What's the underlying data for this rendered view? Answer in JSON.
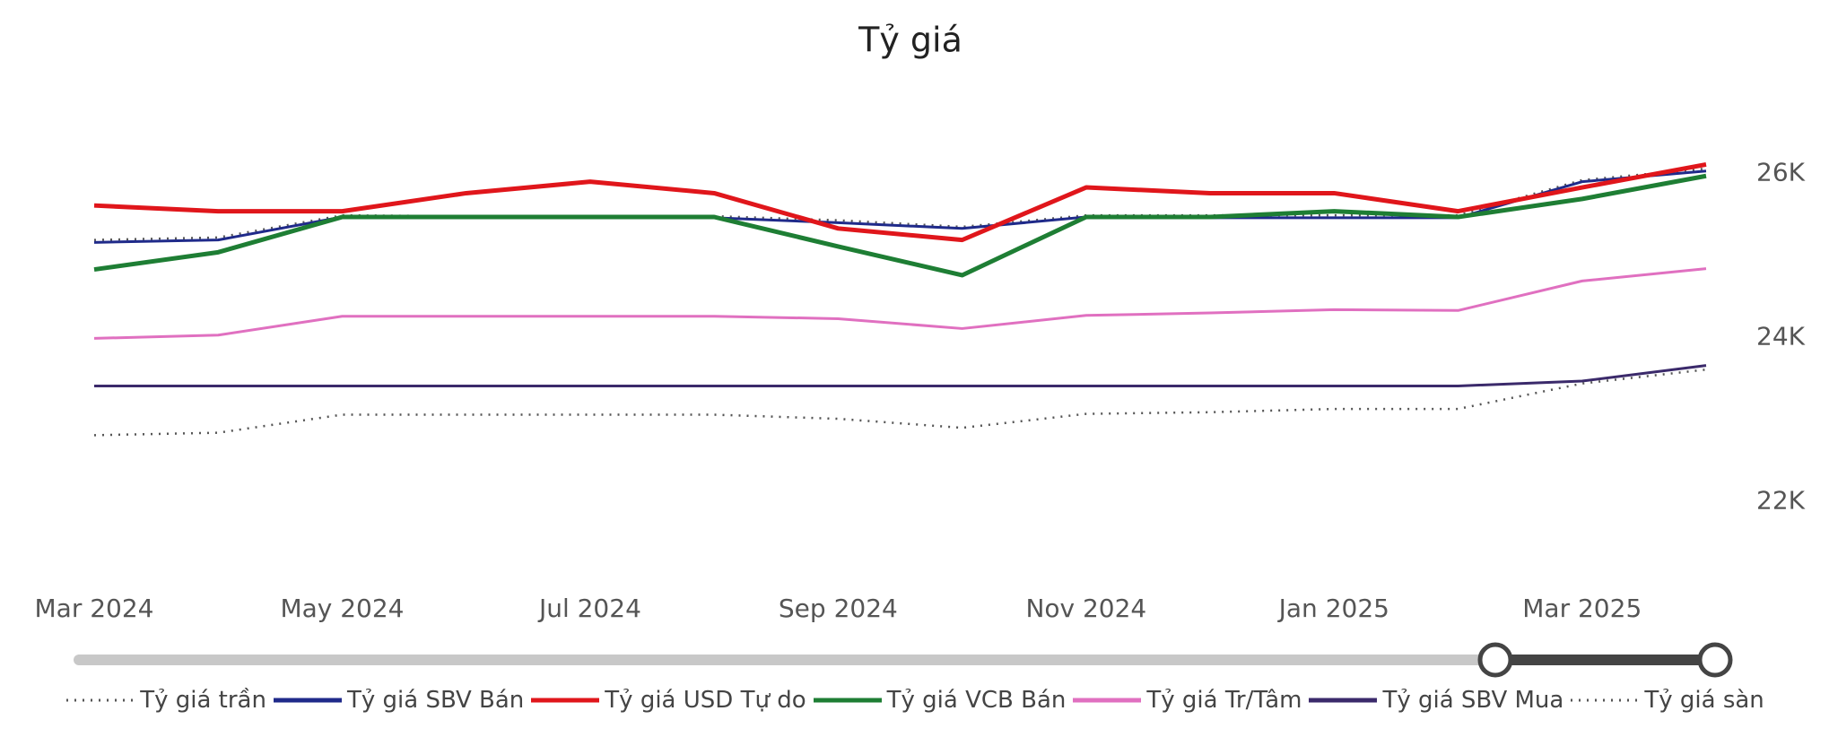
{
  "chart_data": {
    "type": "line",
    "title": "Tỷ giá",
    "legend": "bottom",
    "x": [
      "2024-03",
      "2024-04",
      "2024-05",
      "2024-06",
      "2024-07",
      "2024-08",
      "2024-09",
      "2024-10",
      "2024-11",
      "2024-12",
      "2025-01",
      "2025-02",
      "2025-03",
      "2025-04"
    ],
    "xlim": [
      "2024-03",
      "2025-04"
    ],
    "xticks": [
      {
        "value": "2024-03",
        "label": "Mar 2024"
      },
      {
        "value": "2024-05",
        "label": "May 2024"
      },
      {
        "value": "2024-07",
        "label": "Jul 2024"
      },
      {
        "value": "2024-09",
        "label": "Sep 2024"
      },
      {
        "value": "2024-11",
        "label": "Nov 2024"
      },
      {
        "value": "2025-01",
        "label": "Jan 2025"
      },
      {
        "value": "2025-03",
        "label": "Mar 2025"
      }
    ],
    "ylim": [
      21000,
      27000
    ],
    "yticks": [
      {
        "value": 22000,
        "label": "22K"
      },
      {
        "value": 24000,
        "label": "24K"
      },
      {
        "value": 26000,
        "label": "26K"
      }
    ],
    "series": [
      {
        "name": "Tỷ giá trần",
        "color": "#555555",
        "style": "dotted",
        "values": [
          25190,
          25220,
          25490,
          25480,
          25480,
          25480,
          25430,
          25350,
          25490,
          25490,
          25490,
          25490,
          25920,
          26060
        ]
      },
      {
        "name": "Tỷ giá SBV Bán",
        "color": "#1f2a8a",
        "style": "solid",
        "values": [
          25160,
          25190,
          25470,
          25460,
          25460,
          25460,
          25400,
          25330,
          25470,
          25460,
          25460,
          25460,
          25900,
          26030
        ]
      },
      {
        "name": "Tỷ giá USD Tự do",
        "color": "#e0161b",
        "style": "solid",
        "values": [
          25610,
          25540,
          25540,
          25760,
          25900,
          25760,
          25330,
          25190,
          25830,
          25760,
          25760,
          25540,
          25830,
          26110
        ]
      },
      {
        "name": "Tỷ giá VCB Bán",
        "color": "#1e7e34",
        "style": "solid",
        "values": [
          24830,
          25040,
          25470,
          25470,
          25470,
          25470,
          25110,
          24760,
          25470,
          25470,
          25540,
          25470,
          25690,
          25970
        ]
      },
      {
        "name": "Tỷ giá Tr/Tâm",
        "color": "#e070c0",
        "style": "solid",
        "values": [
          23990,
          24030,
          24260,
          24260,
          24260,
          24260,
          24230,
          24110,
          24270,
          24300,
          24340,
          24330,
          24690,
          24840
        ]
      },
      {
        "name": "Tỷ giá SBV Mua",
        "color": "#3b2a6b",
        "style": "solid",
        "values": [
          23410,
          23410,
          23410,
          23410,
          23410,
          23410,
          23410,
          23410,
          23410,
          23410,
          23410,
          23410,
          23470,
          23660
        ]
      },
      {
        "name": "Tỷ giá sàn",
        "color": "#555555",
        "style": "dotted",
        "values": [
          22810,
          22840,
          23060,
          23060,
          23060,
          23060,
          23010,
          22900,
          23070,
          23090,
          23130,
          23130,
          23440,
          23610
        ]
      }
    ]
  }
}
